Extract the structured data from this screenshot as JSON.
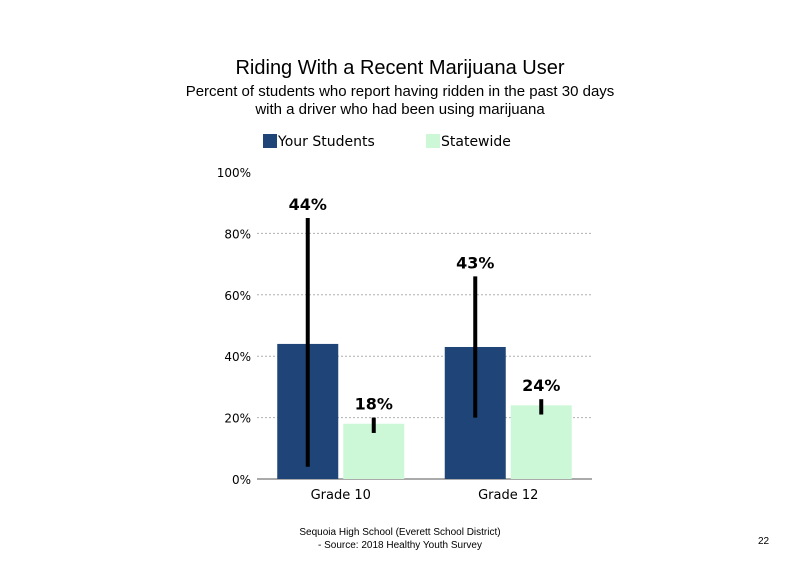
{
  "chart_data": {
    "type": "bar",
    "title": "Riding With a Recent Marijuana User",
    "subtitle_lines": [
      "Percent of students who report having ridden in the past 30 days",
      "with a driver who had been using marijuana"
    ],
    "categories": [
      "Grade 10",
      "Grade 12"
    ],
    "series": [
      {
        "name": "Your Students",
        "color": "#1f4478",
        "values": [
          44,
          43
        ],
        "labels": [
          "44%",
          "43%"
        ],
        "error_low": [
          4,
          20
        ],
        "error_high": [
          85,
          66
        ]
      },
      {
        "name": "Statewide",
        "color": "#ccf8d8",
        "values": [
          18,
          24
        ],
        "labels": [
          "18%",
          "24%"
        ],
        "error_low": [
          15,
          21
        ],
        "error_high": [
          20,
          26
        ]
      }
    ],
    "yticks": [
      "0%",
      "20%",
      "40%",
      "60%",
      "80%",
      "100%"
    ],
    "ylim": [
      0,
      100
    ],
    "grid": true,
    "legend": "top"
  },
  "footer": {
    "line1": "Sequoia High School (Everett School District)",
    "line2": "- Source: 2018 Healthy Youth Survey",
    "page": "22"
  }
}
